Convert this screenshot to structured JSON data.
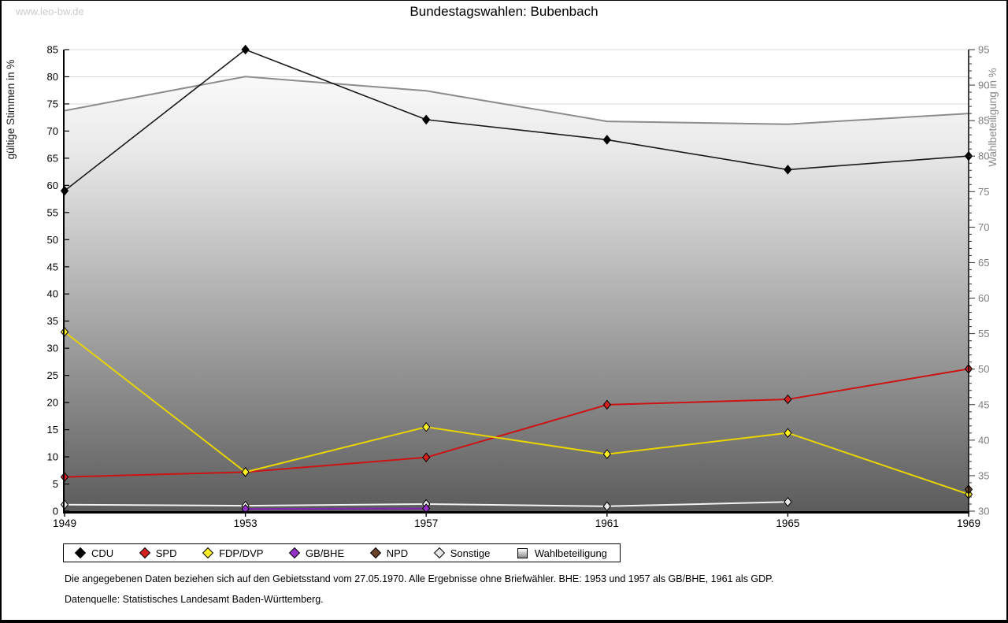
{
  "page": {
    "watermark": "www.leo-bw.de",
    "title": "Bundestagswahlen: Bubenbach",
    "footnote1": "Die angegebenen Daten beziehen sich auf den Gebietsstand vom 27.05.1970. Alle Ergebnisse ohne Briefwähler. BHE: 1953 und 1957 als GB/BHE, 1961 als GDP.",
    "footnote2": "Datenquelle: Statistisches Landesamt Baden-Württemberg."
  },
  "chart_data": {
    "type": "line",
    "title": "Bundestagswahlen: Bubenbach",
    "x": [
      1949,
      1953,
      1957,
      1961,
      1965,
      1969
    ],
    "left_axis": {
      "label": "gültige Stimmen in %",
      "min": 0,
      "max": 85,
      "step": 5
    },
    "right_axis": {
      "label": "Wahlbeteiligung in %",
      "min": 30,
      "max": 95,
      "step": 5,
      "minor_step": 1
    },
    "grid": true,
    "legend_position": "bottom",
    "series": [
      {
        "name": "CDU",
        "axis": "left",
        "marker": "diamond",
        "color": "#000000",
        "line_color": "#1a1a1a",
        "values": [
          59.0,
          85.0,
          72.1,
          68.4,
          62.9,
          65.4
        ]
      },
      {
        "name": "SPD",
        "axis": "left",
        "marker": "diamond",
        "color": "#d62020",
        "line_color": "#cc1414",
        "values": [
          6.3,
          7.2,
          9.9,
          19.6,
          20.6,
          26.2
        ]
      },
      {
        "name": "FDP/DVP",
        "axis": "left",
        "marker": "diamond",
        "color": "#ffee22",
        "line_color": "#e8d400",
        "values": [
          33.0,
          7.2,
          15.5,
          10.5,
          14.4,
          3.1
        ]
      },
      {
        "name": "GB/BHE",
        "axis": "left",
        "marker": "diamond",
        "color": "#9632c8",
        "line_color": "#8026b4",
        "values": [
          null,
          0.4,
          0.5,
          null,
          null,
          null
        ]
      },
      {
        "name": "NPD",
        "axis": "left",
        "marker": "diamond",
        "color": "#6b4226",
        "line_color": "#5a3620",
        "values": [
          null,
          null,
          null,
          null,
          null,
          4.0
        ]
      },
      {
        "name": "Sonstige",
        "axis": "left",
        "marker": "diamond",
        "color": "#e8e8e8",
        "line_color": "#f2f2f2",
        "values": [
          1.2,
          1.0,
          1.3,
          0.9,
          1.7,
          null
        ]
      },
      {
        "name": "Wahlbeteiligung",
        "axis": "right",
        "marker": "square",
        "color": "#8c8c8c",
        "area": true,
        "values": [
          86.4,
          91.2,
          89.2,
          84.9,
          84.5,
          86.0
        ]
      }
    ]
  }
}
